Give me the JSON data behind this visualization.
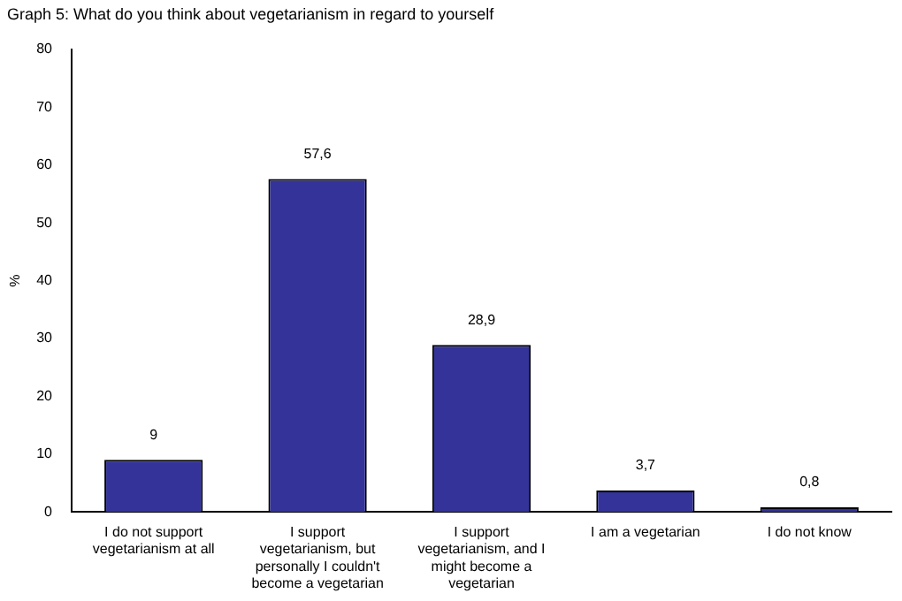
{
  "chart_data": {
    "type": "bar",
    "title": "Graph 5: What do you think about vegetarianism in regard to yourself",
    "categories": [
      "I do not support vegetarianism at all",
      "I support vegetarianism, but personally I couldn't become a vegetarian",
      "I support vegetarianism, and I might become a vegetarian",
      "I am a vegetarian",
      "I do not know"
    ],
    "values": [
      9,
      57.6,
      28.9,
      3.7,
      0.8
    ],
    "value_labels": [
      "9",
      "57,6",
      "28,9",
      "3,7",
      "0,8"
    ],
    "color": "#333399",
    "ylabel": "%",
    "ylim": [
      0,
      80
    ],
    "yticks": [
      0,
      10,
      20,
      30,
      40,
      50,
      60,
      70,
      80
    ],
    "grid": false,
    "legend": false
  }
}
